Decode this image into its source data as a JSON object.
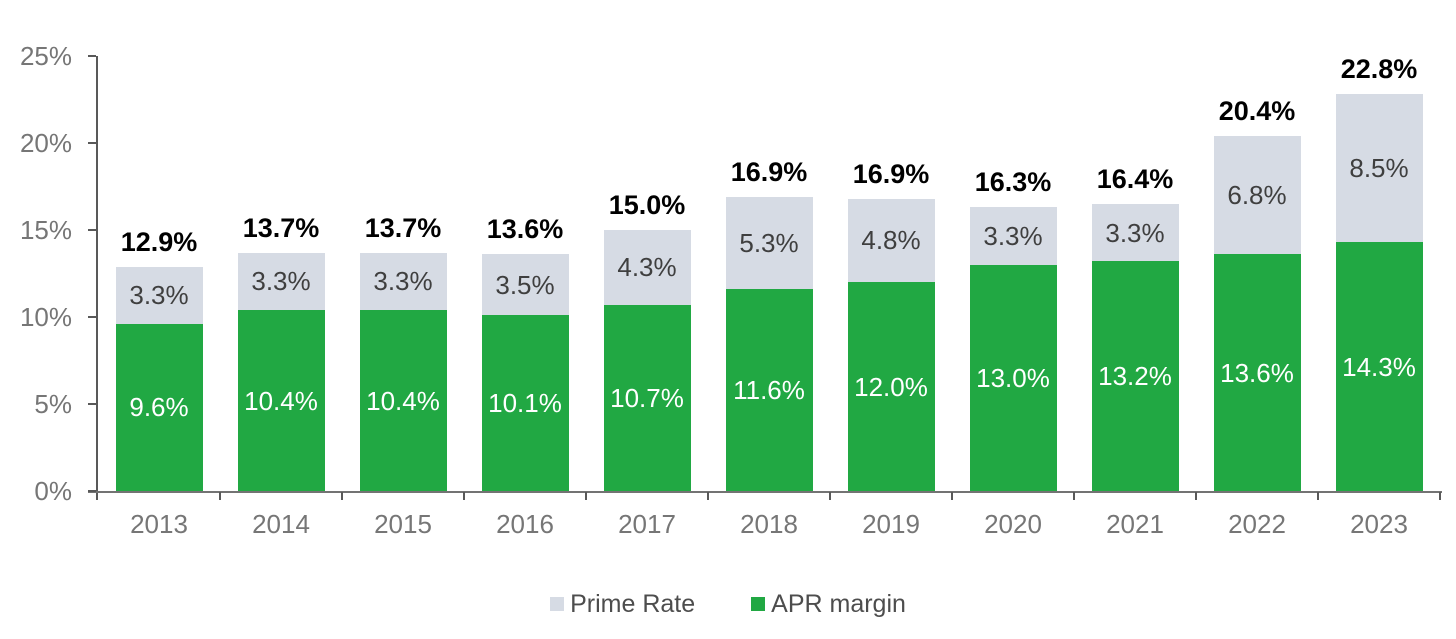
{
  "chart_data": {
    "type": "bar",
    "stacked": true,
    "title": "",
    "xlabel": "",
    "ylabel": "",
    "grid": false,
    "legend_position": "bottom",
    "categories": [
      "2013",
      "2014",
      "2015",
      "2016",
      "2017",
      "2018",
      "2019",
      "2020",
      "2021",
      "2022",
      "2023"
    ],
    "series": [
      {
        "name": "APR margin",
        "color": "#21a843",
        "label_color": "#ffffff",
        "values": [
          9.6,
          10.4,
          10.4,
          10.1,
          10.7,
          11.6,
          12.0,
          13.0,
          13.2,
          13.6,
          14.3
        ]
      },
      {
        "name": "Prime Rate",
        "color": "#d6dbe4",
        "label_color": "#3f3f3f",
        "values": [
          3.3,
          3.3,
          3.3,
          3.5,
          4.3,
          5.3,
          4.8,
          3.3,
          3.3,
          6.8,
          8.5
        ]
      }
    ],
    "totals": [
      "12.9%",
      "13.7%",
      "13.7%",
      "13.6%",
      "15.0%",
      "16.9%",
      "16.9%",
      "16.3%",
      "16.4%",
      "20.4%",
      "22.8%"
    ],
    "y_axis": {
      "min": 0,
      "max": 25,
      "tick_labels": [
        "0%",
        "5%",
        "10%",
        "15%",
        "20%",
        "25%"
      ]
    },
    "legend": [
      {
        "label": "Prime Rate",
        "color": "#d6dbe4"
      },
      {
        "label": "APR margin",
        "color": "#21a843"
      }
    ]
  }
}
